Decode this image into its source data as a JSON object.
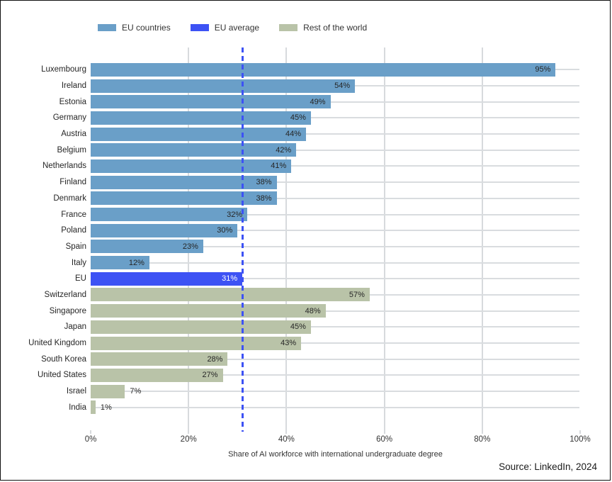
{
  "source_note": "Source: LinkedIn, 2024",
  "chart_data": {
    "type": "bar",
    "orientation": "horizontal",
    "title": "",
    "xlabel": "Share of AI workforce with international undergraduate degree",
    "ylabel": "",
    "xlim": [
      0,
      100
    ],
    "x_ticks": [
      "0%",
      "20%",
      "40%",
      "60%",
      "80%",
      "100%"
    ],
    "grid": "vertical-light",
    "legend_position": "top-left",
    "legend": [
      {
        "label": "EU countries",
        "color": "#6a9fc8"
      },
      {
        "label": "EU average",
        "color": "#3d52f4"
      },
      {
        "label": "Rest of the world",
        "color": "#b9c3a8"
      }
    ],
    "colors": {
      "eu": "#6a9fc8",
      "eu_avg": "#3d52f4",
      "row": "#b9c3a8"
    },
    "reference_line": {
      "value": 31,
      "series": "EU average",
      "style": "dashed",
      "color": "#3d52f4"
    },
    "value_suffix": "%",
    "rows": [
      {
        "country": "Luxembourg",
        "value": 95,
        "group": "eu"
      },
      {
        "country": "Ireland",
        "value": 54,
        "group": "eu"
      },
      {
        "country": "Estonia",
        "value": 49,
        "group": "eu"
      },
      {
        "country": "Germany",
        "value": 45,
        "group": "eu"
      },
      {
        "country": "Austria",
        "value": 44,
        "group": "eu"
      },
      {
        "country": "Belgium",
        "value": 42,
        "group": "eu"
      },
      {
        "country": "Netherlands",
        "value": 41,
        "group": "eu"
      },
      {
        "country": "Finland",
        "value": 38,
        "group": "eu"
      },
      {
        "country": "Denmark",
        "value": 38,
        "group": "eu"
      },
      {
        "country": "France",
        "value": 32,
        "group": "eu"
      },
      {
        "country": "Poland",
        "value": 30,
        "group": "eu"
      },
      {
        "country": "Spain",
        "value": 23,
        "group": "eu"
      },
      {
        "country": "Italy",
        "value": 12,
        "group": "eu"
      },
      {
        "country": "EU",
        "value": 31,
        "group": "eu_avg"
      },
      {
        "country": "Switzerland",
        "value": 57,
        "group": "row"
      },
      {
        "country": "Singapore",
        "value": 48,
        "group": "row"
      },
      {
        "country": "Japan",
        "value": 45,
        "group": "row"
      },
      {
        "country": "United Kingdom",
        "value": 43,
        "group": "row"
      },
      {
        "country": "South Korea",
        "value": 28,
        "group": "row"
      },
      {
        "country": "United States",
        "value": 27,
        "group": "row"
      },
      {
        "country": "Israel",
        "value": 7,
        "group": "row"
      },
      {
        "country": "India",
        "value": 1,
        "group": "row"
      }
    ]
  }
}
